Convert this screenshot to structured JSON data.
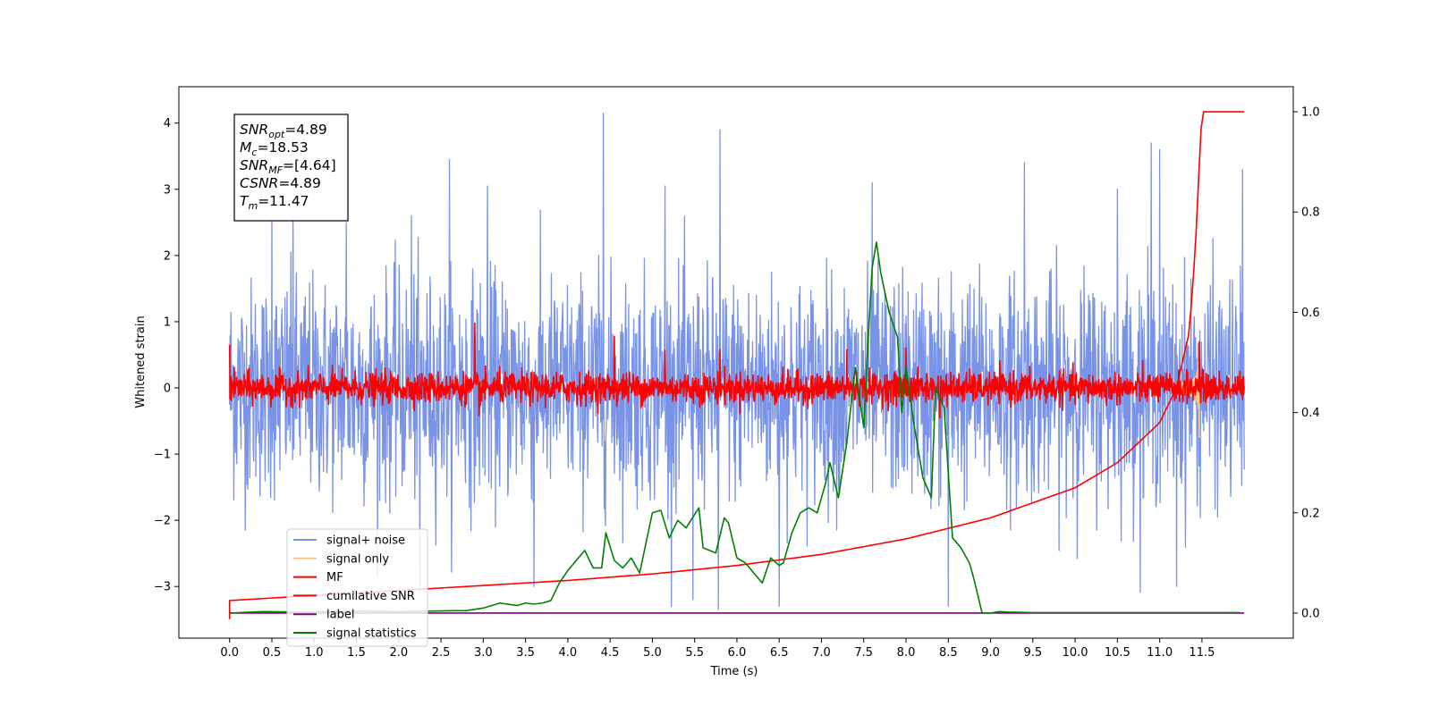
{
  "chart_data": {
    "type": "line",
    "title": "",
    "xlabel": "Time (s)",
    "ylabel": "Whitened strain",
    "y2label": "",
    "xlim": [
      -0.6,
      12.58
    ],
    "ylim": [
      -3.78,
      4.55
    ],
    "y2lim": [
      -0.05,
      1.05
    ],
    "x_ticks": [
      "0.0",
      "0.5",
      "1.0",
      "1.5",
      "2.0",
      "2.5",
      "3.0",
      "3.5",
      "4.0",
      "4.5",
      "5.0",
      "5.5",
      "6.0",
      "6.5",
      "7.0",
      "7.5",
      "8.0",
      "8.5",
      "9.0",
      "9.5",
      "10.0",
      "10.5",
      "11.0",
      "11.5"
    ],
    "y_ticks": [
      -3,
      -2,
      -1,
      0,
      1,
      2,
      3,
      4
    ],
    "y_tick_labels": [
      "−3",
      "−2",
      "−1",
      "0",
      "1",
      "2",
      "3",
      "4"
    ],
    "y2_ticks": [
      "0.0",
      "0.2",
      "0.4",
      "0.6",
      "0.8",
      "1.0"
    ],
    "grid": false,
    "legend_position": "lower-left",
    "annotation_box": {
      "lines": [
        {
          "main": "SNR",
          "sub": "opt",
          "rest": "=4.89"
        },
        {
          "main": "M",
          "sub": "c",
          "rest": "=18.53"
        },
        {
          "main": "SNR",
          "sub": "MF",
          "rest": "=[4.64]"
        },
        {
          "main": "CSNR",
          "sub": "",
          "rest": "=4.89"
        },
        {
          "main": "T",
          "sub": "m",
          "rest": "=11.47"
        }
      ]
    },
    "series": [
      {
        "name": "signal+ noise",
        "axis": "left",
        "color": "#7893e8",
        "kind": "noise",
        "x_range": [
          0.0,
          12.0
        ],
        "amplitude_std": 1.0,
        "peaks": [
          [
            0.5,
            2.7
          ],
          [
            0.75,
            3.1
          ],
          [
            1.38,
            2.5
          ],
          [
            2.15,
            2.6
          ],
          [
            2.25,
            -3.1
          ],
          [
            2.6,
            3.45
          ],
          [
            3.05,
            3.05
          ],
          [
            3.6,
            -3.0
          ],
          [
            4.42,
            4.15
          ],
          [
            5.15,
            3.05
          ],
          [
            5.48,
            -3.2
          ],
          [
            5.8,
            3.9
          ],
          [
            5.78,
            -3.35
          ],
          [
            6.5,
            -3.3
          ],
          [
            7.6,
            3.1
          ],
          [
            8.5,
            -3.3
          ],
          [
            9.4,
            3.4
          ],
          [
            10.5,
            3.0
          ],
          [
            10.9,
            3.7
          ],
          [
            11.0,
            3.6
          ],
          [
            11.2,
            -3.0
          ],
          [
            11.98,
            3.3
          ]
        ]
      },
      {
        "name": "signal only",
        "axis": "left",
        "color": "#f5c98a",
        "kind": "chirp",
        "x_range": [
          11.2,
          11.5
        ],
        "peak_time": 11.47,
        "amplitude": 0.82
      },
      {
        "name": "MF",
        "axis": "left",
        "color": "#ff0000",
        "kind": "noise",
        "x_range": [
          0.0,
          12.0
        ],
        "amplitude_std": 0.14,
        "peaks": [
          [
            0.0,
            0.65
          ],
          [
            2.9,
            0.98
          ],
          [
            2.95,
            -0.42
          ],
          [
            4.55,
            0.78
          ],
          [
            5.15,
            0.57
          ],
          [
            5.8,
            0.58
          ],
          [
            7.3,
            0.58
          ],
          [
            8.0,
            0.6
          ],
          [
            8.4,
            -0.45
          ],
          [
            11.47,
            0.7
          ]
        ]
      },
      {
        "name": "cumilative SNR",
        "axis": "right",
        "color": "#ff0000",
        "kind": "cumulative",
        "x": [
          0.0,
          1.0,
          2.0,
          3.0,
          4.0,
          5.0,
          6.0,
          7.0,
          8.0,
          9.0,
          10.0,
          10.5,
          11.0,
          11.2,
          11.35,
          11.42,
          11.47,
          11.5,
          12.0
        ],
        "y": [
          0.025,
          0.035,
          0.045,
          0.055,
          0.065,
          0.078,
          0.095,
          0.117,
          0.148,
          0.19,
          0.25,
          0.3,
          0.38,
          0.45,
          0.56,
          0.72,
          0.9,
          1.0,
          1.0
        ]
      },
      {
        "name": "label",
        "axis": "right",
        "color": "#800080",
        "kind": "line",
        "x": [
          0.0,
          12.0
        ],
        "y": [
          0.0,
          0.0
        ]
      },
      {
        "name": "signal statistics",
        "axis": "right",
        "color": "#008000",
        "kind": "line",
        "x": [
          0.0,
          0.4,
          0.8,
          1.2,
          1.6,
          2.0,
          2.4,
          2.8,
          3.0,
          3.2,
          3.4,
          3.5,
          3.6,
          3.7,
          3.8,
          3.9,
          4.0,
          4.2,
          4.3,
          4.4,
          4.45,
          4.55,
          4.65,
          4.75,
          4.85,
          5.0,
          5.1,
          5.2,
          5.3,
          5.4,
          5.55,
          5.6,
          5.75,
          5.85,
          5.9,
          6.0,
          6.1,
          6.2,
          6.3,
          6.4,
          6.5,
          6.55,
          6.65,
          6.75,
          6.85,
          6.95,
          7.05,
          7.1,
          7.2,
          7.3,
          7.4,
          7.5,
          7.55,
          7.6,
          7.65,
          7.7,
          7.8,
          7.9,
          7.95,
          8.0,
          8.05,
          8.1,
          8.2,
          8.3,
          8.35,
          8.45,
          8.55,
          8.65,
          8.75,
          8.8,
          8.9,
          9.0,
          9.1,
          9.2,
          9.5,
          10.0,
          10.5,
          11.0,
          11.5,
          11.95
        ],
        "y": [
          0.0,
          0.003,
          0.002,
          0.003,
          0.004,
          0.003,
          0.004,
          0.005,
          0.01,
          0.02,
          0.015,
          0.02,
          0.018,
          0.02,
          0.025,
          0.06,
          0.085,
          0.125,
          0.09,
          0.09,
          0.16,
          0.105,
          0.09,
          0.11,
          0.08,
          0.2,
          0.205,
          0.15,
          0.185,
          0.17,
          0.21,
          0.13,
          0.12,
          0.19,
          0.18,
          0.11,
          0.1,
          0.08,
          0.06,
          0.11,
          0.095,
          0.1,
          0.16,
          0.2,
          0.21,
          0.2,
          0.26,
          0.3,
          0.23,
          0.34,
          0.49,
          0.37,
          0.54,
          0.69,
          0.74,
          0.68,
          0.6,
          0.55,
          0.4,
          0.49,
          0.43,
          0.37,
          0.27,
          0.23,
          0.45,
          0.41,
          0.15,
          0.13,
          0.1,
          0.07,
          0.0,
          0.0,
          0.003,
          0.002,
          0.001,
          0.001,
          0.001,
          0.001,
          0.001,
          0.001
        ]
      }
    ]
  }
}
